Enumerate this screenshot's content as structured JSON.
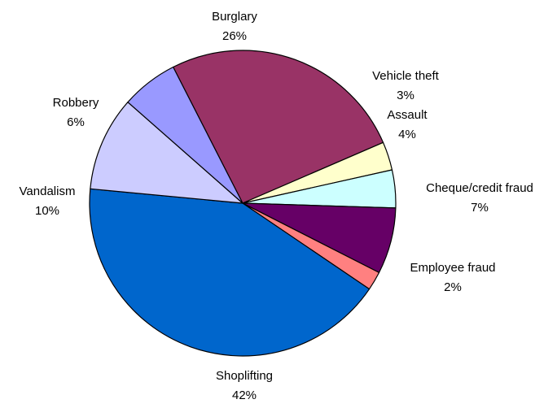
{
  "chart_data": {
    "type": "pie",
    "title": "",
    "legend": "none",
    "slices": [
      {
        "label": "Burglary",
        "value_label": "26%",
        "value": 26,
        "color": "#993366"
      },
      {
        "label": "Vehicle theft",
        "value_label": "3%",
        "value": 3,
        "color": "#FFFFCC"
      },
      {
        "label": "Assault",
        "value_label": "4%",
        "value": 4,
        "color": "#CCFFFF"
      },
      {
        "label": "Cheque/credit fraud",
        "value_label": "7%",
        "value": 7,
        "color": "#660066"
      },
      {
        "label": "Employee fraud",
        "value_label": "2%",
        "value": 2,
        "color": "#FF8080"
      },
      {
        "label": "Shoplifting",
        "value_label": "42%",
        "value": 42,
        "color": "#0066CC"
      },
      {
        "label": "Vandalism",
        "value_label": "10%",
        "value": 10,
        "color": "#CCCCFF"
      },
      {
        "label": "Robbery",
        "value_label": "6%",
        "value": 6,
        "color": "#9999FF"
      }
    ]
  }
}
